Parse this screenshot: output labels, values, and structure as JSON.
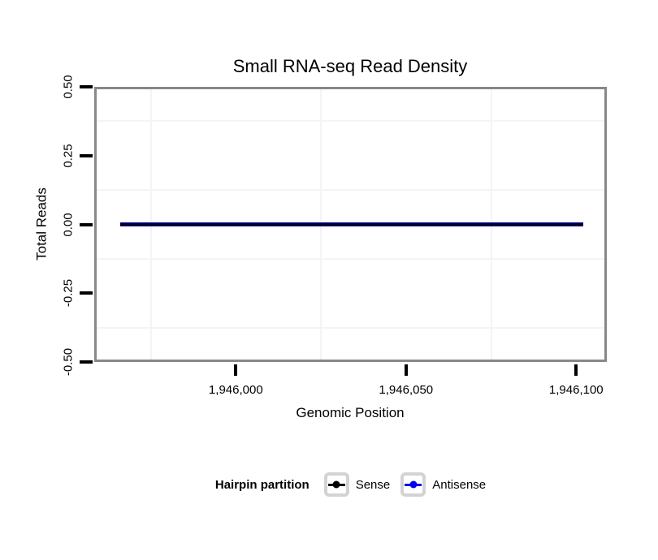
{
  "chart_data": {
    "type": "line",
    "title": "Small RNA-seq Read Density",
    "xlabel": "Genomic Position",
    "ylabel": "Total Reads",
    "xlim": [
      1945958.4,
      1946109.0
    ],
    "ylim": [
      -0.5,
      0.5
    ],
    "x_ticks": [
      {
        "value": 1946000,
        "label": "1,946,000"
      },
      {
        "value": 1946050,
        "label": "1,946,050"
      },
      {
        "value": 1946100,
        "label": "1,946,100"
      }
    ],
    "y_ticks": [
      {
        "value": 0.5,
        "label": "0.50"
      },
      {
        "value": 0.25,
        "label": "0.25"
      },
      {
        "value": 0.0,
        "label": "0.00"
      },
      {
        "value": -0.25,
        "label": "-0.25"
      },
      {
        "value": -0.5,
        "label": "-0.50"
      }
    ],
    "grid": {
      "x_minor": [
        1945975,
        1946025,
        1946075
      ],
      "y_minor": [
        0.375,
        0.125,
        -0.125,
        -0.375
      ],
      "major_visible": false
    },
    "series": [
      {
        "name": "Sense",
        "color": "#000000",
        "x_start": 1945966,
        "x_end": 1946102,
        "y_constant": 0
      },
      {
        "name": "Antisense",
        "color": "#0000ee",
        "x_start": 1945966,
        "x_end": 1946102,
        "y_constant": 0
      }
    ],
    "legend": {
      "title": "Hairpin partition",
      "position": "bottom",
      "items": [
        {
          "label": "Sense",
          "color": "#000000"
        },
        {
          "label": "Antisense",
          "color": "#0000ee"
        }
      ]
    }
  },
  "colors": {
    "panel_border": "#888888",
    "axis_tick": "#000000",
    "gridline": "#f4f4f4",
    "legend_key_border": "#d3d3d3",
    "background": "#ffffff"
  }
}
